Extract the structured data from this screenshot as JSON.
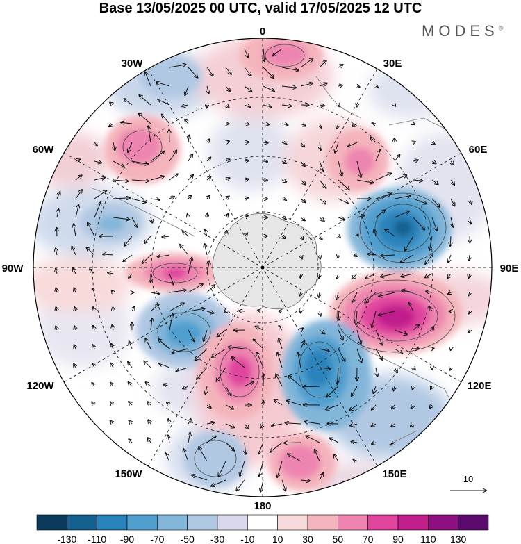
{
  "title": "Base 13/05/2025 00 UTC, valid 17/05/2025 12 UTC",
  "brand": "MODES",
  "brand_mark": "®",
  "longitude_labels": {
    "top": "0",
    "top_right": "30E",
    "right_upper": "60E",
    "right": "90E",
    "right_lower": "120E",
    "bottom_right": "150E",
    "bottom": "180",
    "bottom_left": "150W",
    "left_lower": "120W",
    "left": "90W",
    "left_upper": "60W",
    "top_left": "30W"
  },
  "vector_scale_label": "10",
  "colorbar": {
    "ticks": [
      "-130",
      "-110",
      "-90",
      "-70",
      "-50",
      "-30",
      "-10",
      "10",
      "30",
      "50",
      "70",
      "90",
      "110",
      "130"
    ],
    "colors": [
      "#0b3a5a",
      "#14608f",
      "#2a83bb",
      "#4f9fcf",
      "#82b6d9",
      "#b1c8e3",
      "#dad9ec",
      "#ffffff",
      "#f8dada",
      "#f4b4bc",
      "#ed85b0",
      "#e0459e",
      "#c01f8c",
      "#8e0f7f",
      "#5a0a6c"
    ]
  },
  "chart_data": {
    "type": "polar-stereographic anomaly map (southern hemisphere)",
    "variable": "geopotential height anomaly with wind vectors",
    "levels": [
      -130,
      -110,
      -90,
      -70,
      -50,
      -30,
      -10,
      10,
      30,
      50,
      70,
      90,
      110,
      130
    ],
    "vector_reference": 10,
    "centers": [
      {
        "name": "positive-0E",
        "lon": 5,
        "value": 60
      },
      {
        "name": "positive-45W",
        "lon": -45,
        "value": 55
      },
      {
        "name": "positive-30E",
        "lon": 35,
        "value": 40
      },
      {
        "name": "negative-60E",
        "lon": 70,
        "value": -100
      },
      {
        "name": "positive-95W",
        "lon": -95,
        "value": 80
      },
      {
        "name": "positive-110E",
        "lon": 110,
        "value": 110
      },
      {
        "name": "negative-125W",
        "lon": -125,
        "value": -70
      },
      {
        "name": "positive-165W",
        "lon": -165,
        "value": 90
      },
      {
        "name": "negative-140E",
        "lon": 140,
        "value": -90
      },
      {
        "name": "positive-175E",
        "lon": 172,
        "value": 60
      },
      {
        "name": "negative-160W",
        "lon": -158,
        "value": -30
      }
    ]
  }
}
